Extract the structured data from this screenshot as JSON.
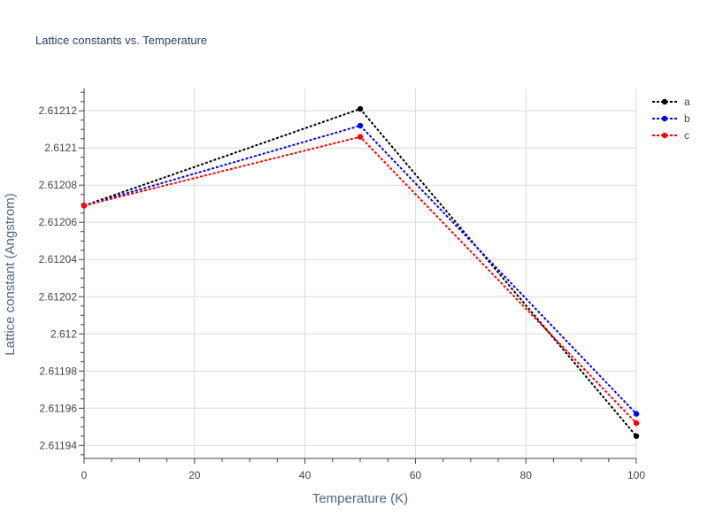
{
  "chart_data": {
    "type": "line",
    "title": "Lattice constants vs. Temperature",
    "xlabel": "Temperature (K)",
    "ylabel": "Lattice constant (Angstrom)",
    "xlim": [
      0,
      100
    ],
    "ylim": [
      2.611933,
      2.612132
    ],
    "x_ticks": [
      0,
      20,
      40,
      60,
      80,
      100
    ],
    "x_tick_labels": [
      "0",
      "20",
      "40",
      "60",
      "80",
      "100"
    ],
    "y_ticks": [
      2.61194,
      2.61196,
      2.61198,
      2.612,
      2.61202,
      2.61204,
      2.61206,
      2.61208,
      2.6121,
      2.61212
    ],
    "y_tick_labels": [
      "2.61194",
      "2.61196",
      "2.61198",
      "2.612",
      "2.61202",
      "2.61204",
      "2.61206",
      "2.61208",
      "2.6121",
      "2.61212"
    ],
    "grid": true,
    "legend_position": "top-right",
    "series": [
      {
        "name": "a",
        "color": "#000000",
        "x": [
          0,
          50,
          100
        ],
        "y": [
          2.612069,
          2.612121,
          2.611945
        ]
      },
      {
        "name": "b",
        "color": "#0000ff",
        "x": [
          0,
          50,
          100
        ],
        "y": [
          2.612069,
          2.612112,
          2.611957
        ]
      },
      {
        "name": "c",
        "color": "#ff0000",
        "x": [
          0,
          50,
          100
        ],
        "y": [
          2.612069,
          2.612106,
          2.611952
        ]
      }
    ]
  }
}
